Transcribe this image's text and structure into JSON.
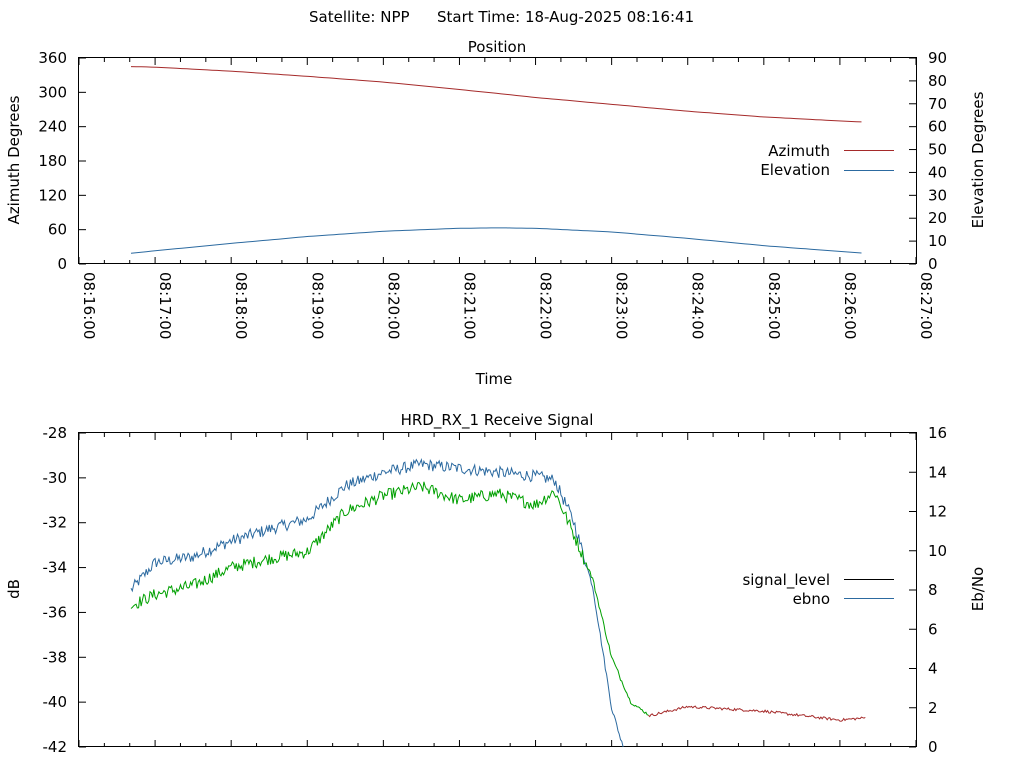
{
  "header": {
    "satellite": "Satellite: NPP",
    "start_time": "Start Time: 18-Aug-2025 08:16:41"
  },
  "position_chart": {
    "title": "Position",
    "xlabel": "Time",
    "ylabel_left": "Azimuth Degrees",
    "ylabel_right": "Elevation Degrees",
    "legend": [
      "Azimuth",
      "Elevation"
    ]
  },
  "signal_chart": {
    "title": "HRD_RX_1 Receive Signal",
    "ylabel_left": "dB",
    "ylabel_right": "Eb/No",
    "legend": [
      "signal_level",
      "ebno"
    ]
  },
  "colors": {
    "azimuth": "#a52a2a",
    "elevation": "#2c6aa0",
    "signal_level": "#000000",
    "signal_green": "#00a000",
    "ebno": "#2c6aa0",
    "signal_tail": "#a52a2a"
  },
  "chart_data": [
    {
      "type": "line",
      "title": "Position",
      "xlabel": "Time",
      "ylabel": "Azimuth Degrees",
      "y2label": "Elevation Degrees",
      "x_ticks": [
        "08:16:00",
        "08:17:00",
        "08:18:00",
        "08:19:00",
        "08:20:00",
        "08:21:00",
        "08:22:00",
        "08:23:00",
        "08:24:00",
        "08:25:00",
        "08:26:00",
        "08:27:00"
      ],
      "xlim": [
        "08:16:00",
        "08:27:00"
      ],
      "ylim": [
        0,
        360
      ],
      "y_ticks": [
        "0",
        "60",
        "120",
        "180",
        "240",
        "300",
        "360"
      ],
      "y2lim": [
        0,
        90
      ],
      "y2_ticks": [
        "0",
        "10",
        "20",
        "30",
        "40",
        "50",
        "60",
        "70",
        "80",
        "90"
      ],
      "legend_position": "right",
      "grid": false,
      "series": [
        {
          "name": "Azimuth",
          "axis": "left",
          "x": [
            "08:16:41",
            "08:17:00",
            "08:18:00",
            "08:19:00",
            "08:20:00",
            "08:21:00",
            "08:22:00",
            "08:23:00",
            "08:24:00",
            "08:25:00",
            "08:26:00",
            "08:26:20"
          ],
          "values": [
            345,
            344,
            337,
            328,
            318,
            305,
            291,
            279,
            267,
            257,
            250,
            248
          ]
        },
        {
          "name": "Elevation",
          "axis": "right",
          "x": [
            "08:16:41",
            "08:17:00",
            "08:18:00",
            "08:19:00",
            "08:20:00",
            "08:21:00",
            "08:21:30",
            "08:22:00",
            "08:23:00",
            "08:24:00",
            "08:25:00",
            "08:26:00",
            "08:26:20"
          ],
          "values": [
            4.7,
            5.8,
            9,
            12,
            14.3,
            15.6,
            15.8,
            15.6,
            14,
            11.2,
            8,
            5.5,
            4.7
          ]
        }
      ]
    },
    {
      "type": "line",
      "title": "HRD_RX_1 Receive Signal",
      "ylabel": "dB",
      "y2label": "Eb/No",
      "ylim": [
        -42,
        -28
      ],
      "y_ticks": [
        "-28",
        "-30",
        "-32",
        "-34",
        "-36",
        "-38",
        "-40",
        "-42"
      ],
      "y2lim": [
        0,
        16
      ],
      "y2_ticks": [
        "0",
        "2",
        "4",
        "6",
        "8",
        "10",
        "12",
        "14",
        "16"
      ],
      "xlim": [
        "08:16:00",
        "08:27:00"
      ],
      "legend_position": "right",
      "grid": false,
      "series": [
        {
          "name": "signal_level",
          "axis": "left",
          "x": [
            "08:16:41",
            "08:17:00",
            "08:17:30",
            "08:18:00",
            "08:18:30",
            "08:19:00",
            "08:19:30",
            "08:20:00",
            "08:20:30",
            "08:21:00",
            "08:21:30",
            "08:22:00",
            "08:22:15",
            "08:22:30",
            "08:22:45",
            "08:23:00",
            "08:23:15",
            "08:23:30",
            "08:24:00",
            "08:24:30",
            "08:25:00",
            "08:25:30",
            "08:26:00",
            "08:26:20"
          ],
          "values": [
            -35.7,
            -35.2,
            -34.8,
            -34.0,
            -33.6,
            -33.3,
            -31.5,
            -30.8,
            -30.4,
            -31.0,
            -30.7,
            -31.2,
            -30.6,
            -32.5,
            -34.5,
            -38.0,
            -40.0,
            -40.6,
            -40.2,
            -40.3,
            -40.4,
            -40.6,
            -40.8,
            -40.7
          ]
        },
        {
          "name": "ebno",
          "axis": "right",
          "x": [
            "08:16:41",
            "08:17:00",
            "08:17:30",
            "08:18:00",
            "08:18:30",
            "08:19:00",
            "08:19:30",
            "08:20:00",
            "08:20:30",
            "08:21:00",
            "08:21:30",
            "08:22:00",
            "08:22:15",
            "08:22:30",
            "08:22:45",
            "08:23:00",
            "08:23:09"
          ],
          "values": [
            8.0,
            9.4,
            9.7,
            10.5,
            11.1,
            11.6,
            13.3,
            14.0,
            14.4,
            14.2,
            14.0,
            13.8,
            13.6,
            11.5,
            8.2,
            2.0,
            0
          ]
        }
      ]
    }
  ]
}
